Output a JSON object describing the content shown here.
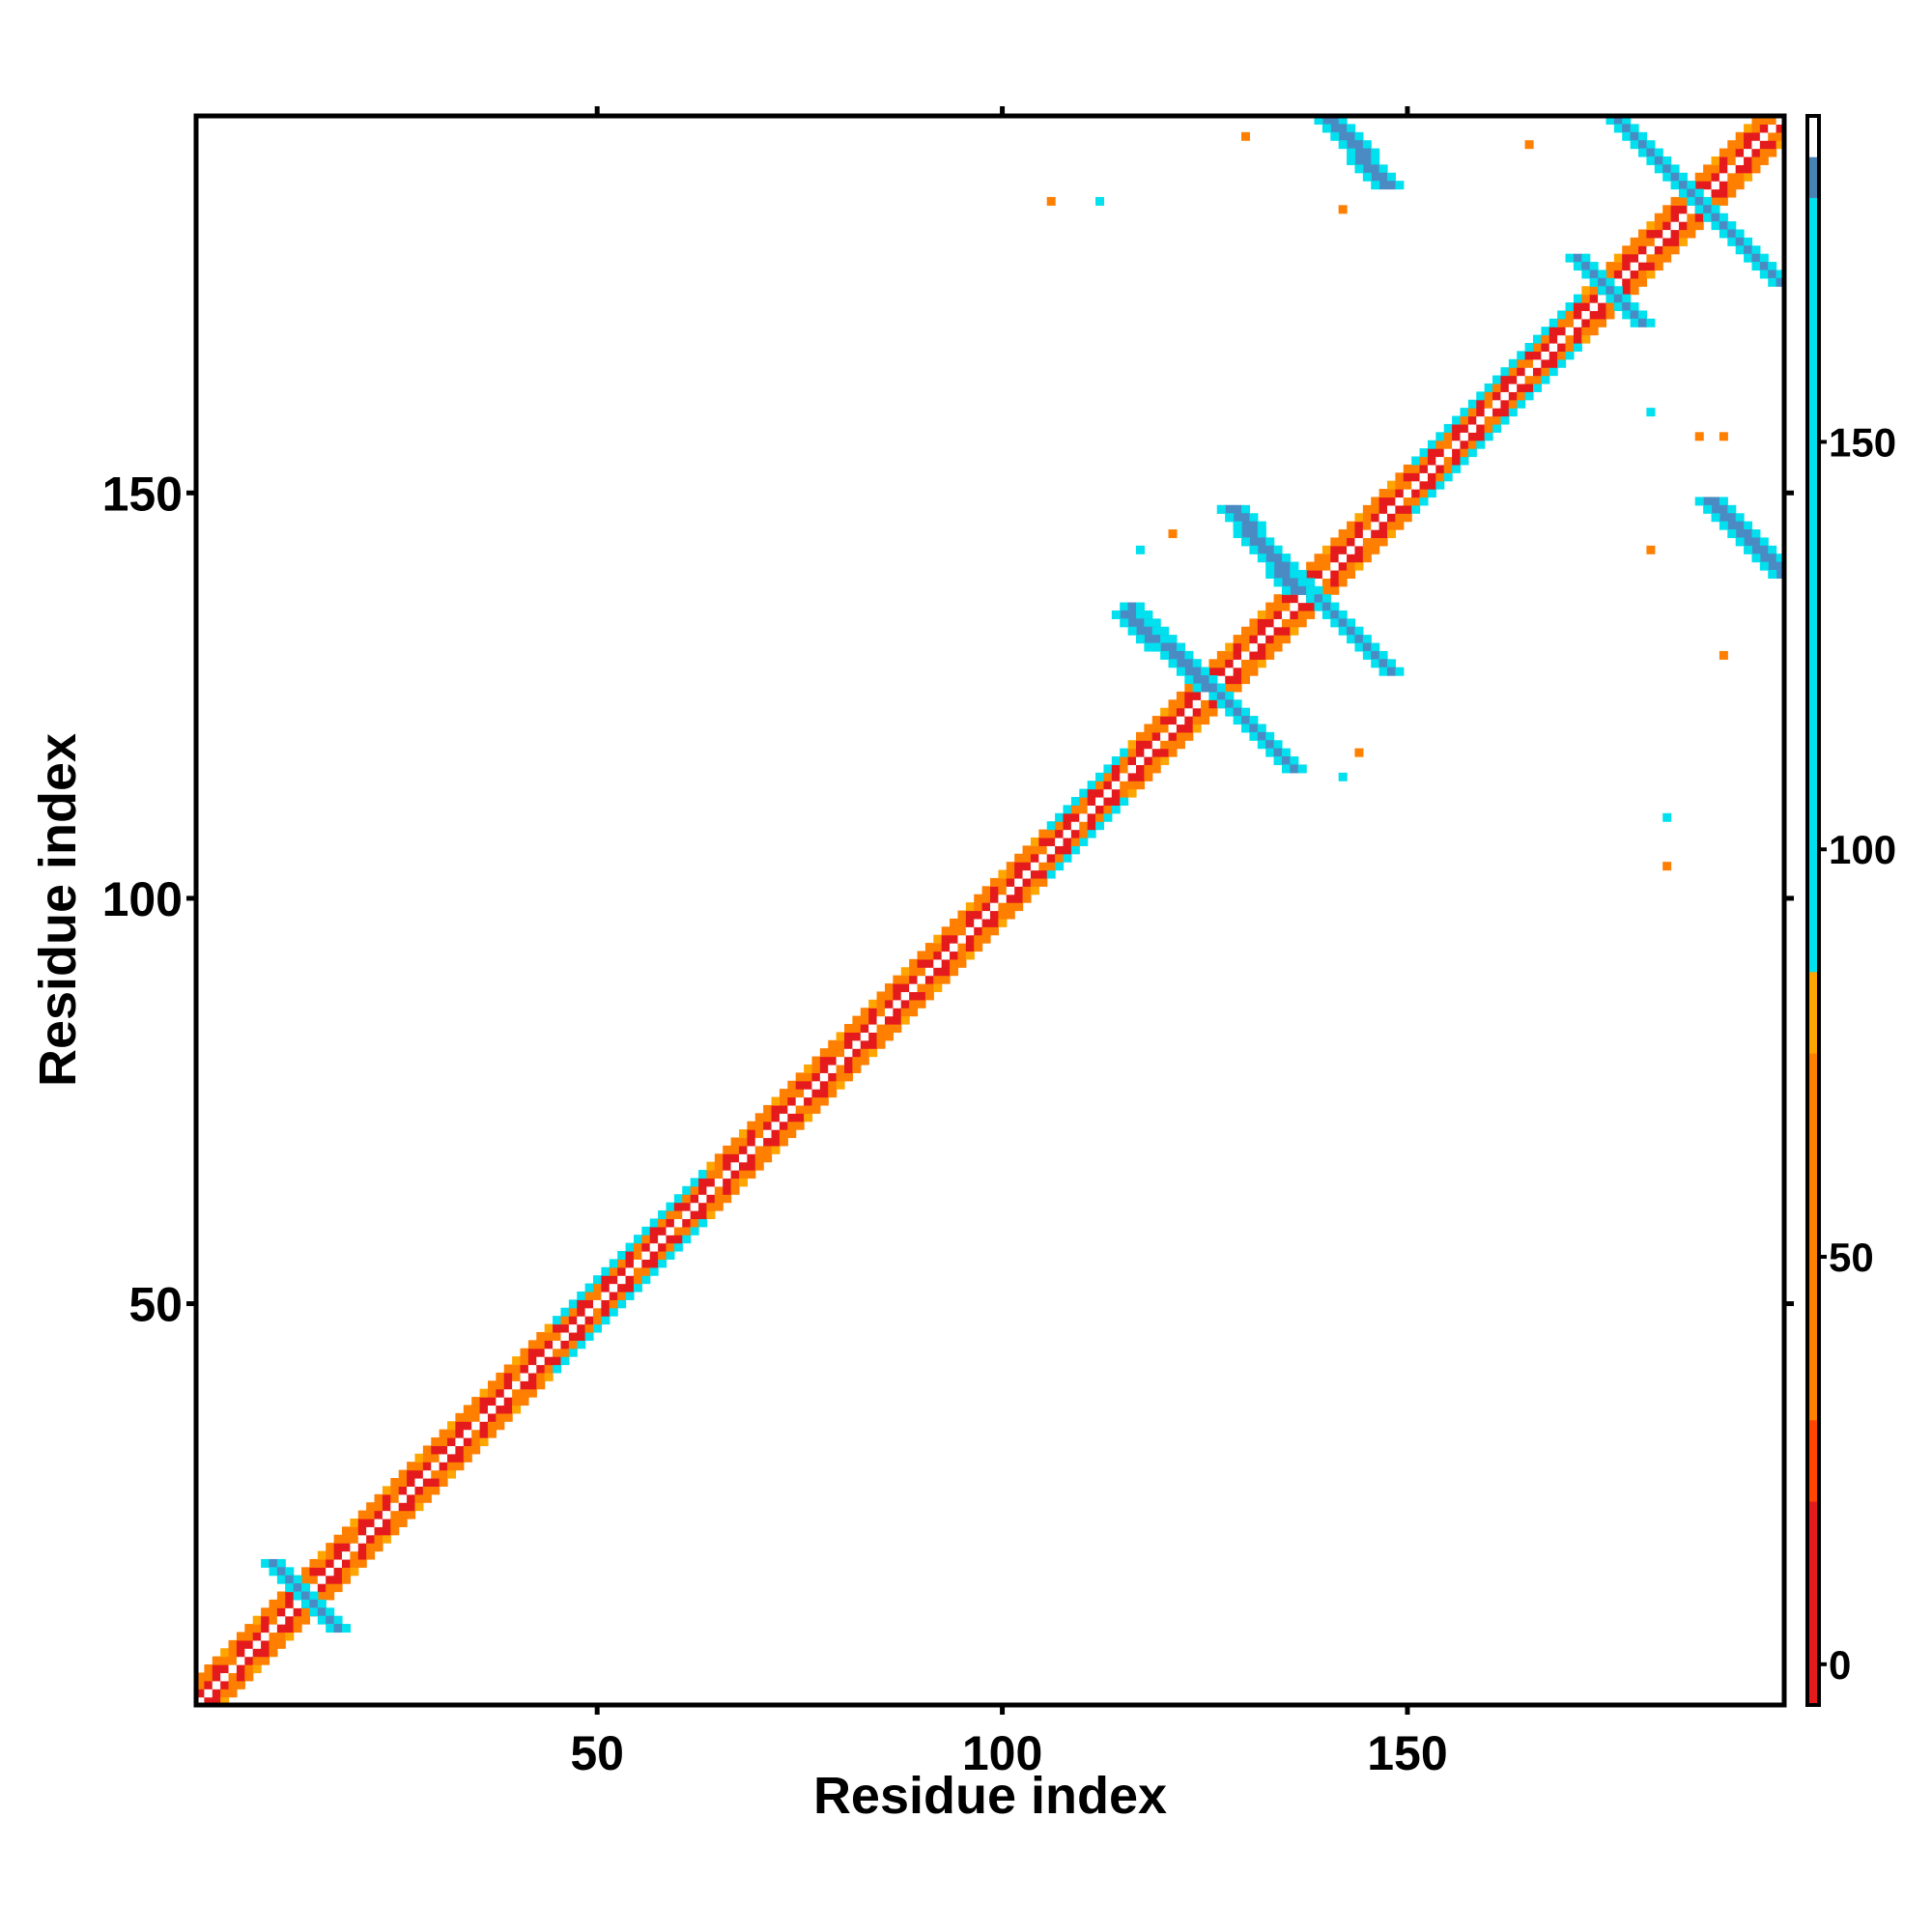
{
  "chart_data": {
    "type": "heatmap",
    "title": "",
    "xlabel": "Residue index",
    "ylabel": "Residue index",
    "xlim": [
      1,
      196
    ],
    "ylim": [
      1,
      196
    ],
    "x_ticks": [
      50,
      100,
      150
    ],
    "y_ticks": [
      50,
      100,
      150
    ],
    "grid": false,
    "colorbar": {
      "range": [
        -5,
        190
      ],
      "ticks": [
        0,
        50,
        100,
        150
      ],
      "bands": [
        {
          "from": -5,
          "to": 20,
          "color": "#e41a1c"
        },
        {
          "from": 20,
          "to": 30,
          "color": "#ff4500"
        },
        {
          "from": 30,
          "to": 75,
          "color": "#ff7f00"
        },
        {
          "from": 75,
          "to": 85,
          "color": "#ffa500"
        },
        {
          "from": 85,
          "to": 180,
          "color": "#00e0ee"
        },
        {
          "from": 180,
          "to": 185,
          "color": "#4682b4"
        },
        {
          "from": 185,
          "to": 190,
          "color": "#ffffff"
        }
      ]
    },
    "value_colors": {
      "diag": "#ffffff",
      "near": "#e41a1c",
      "mid": "#ff7f00",
      "far": "#ffa500",
      "strand": "#00e0ee",
      "strand_core": "#4a8bc4"
    },
    "diagonal_band": {
      "start": 1,
      "end": 196,
      "width": 3
    },
    "blocks": [
      {
        "name": "sheet-a",
        "center": [
          14,
          14
        ],
        "arm": 4,
        "orientation": "anti"
      },
      {
        "name": "sheet-b",
        "center": [
          126,
          126
        ],
        "arm": 10,
        "orientation": "anti"
      },
      {
        "name": "sheet-c",
        "center": [
          138,
          138
        ],
        "arm": 10,
        "orientation": "anti"
      },
      {
        "name": "sheet-d",
        "center": [
          186,
          186
        ],
        "arm": 10,
        "orientation": "anti"
      },
      {
        "name": "sheet-e",
        "center": [
          175,
          175
        ],
        "arm": 4,
        "orientation": "anti"
      }
    ],
    "offdiag": [
      {
        "x_from": 140,
        "x_to": 147,
        "y_from": 196,
        "y_to": 188,
        "kind": "strand"
      },
      {
        "x_from": 187,
        "x_to": 196,
        "y_from": 149,
        "y_to": 140,
        "kind": "strand"
      },
      {
        "x_from": 128,
        "x_to": 136,
        "y_from": 148,
        "y_to": 138,
        "kind": "strand"
      },
      {
        "x_from": 115,
        "x_to": 125,
        "y_from": 135,
        "y_to": 126,
        "kind": "strand"
      }
    ],
    "scatter_points": [
      {
        "x": 130,
        "y": 194,
        "kind": "mid"
      },
      {
        "x": 106,
        "y": 186,
        "kind": "mid"
      },
      {
        "x": 112,
        "y": 186,
        "kind": "strand"
      },
      {
        "x": 142,
        "y": 185,
        "kind": "mid"
      },
      {
        "x": 165,
        "y": 193,
        "kind": "mid"
      },
      {
        "x": 180,
        "y": 160,
        "kind": "strand"
      },
      {
        "x": 182,
        "y": 110,
        "kind": "strand"
      },
      {
        "x": 182,
        "y": 104,
        "kind": "mid"
      },
      {
        "x": 186,
        "y": 157,
        "kind": "mid"
      },
      {
        "x": 189,
        "y": 157,
        "kind": "mid"
      },
      {
        "x": 180,
        "y": 143,
        "kind": "mid"
      },
      {
        "x": 189,
        "y": 130,
        "kind": "mid"
      },
      {
        "x": 117,
        "y": 143,
        "kind": "strand"
      },
      {
        "x": 121,
        "y": 145,
        "kind": "mid"
      },
      {
        "x": 142,
        "y": 115,
        "kind": "strand"
      },
      {
        "x": 144,
        "y": 118,
        "kind": "mid"
      }
    ]
  }
}
